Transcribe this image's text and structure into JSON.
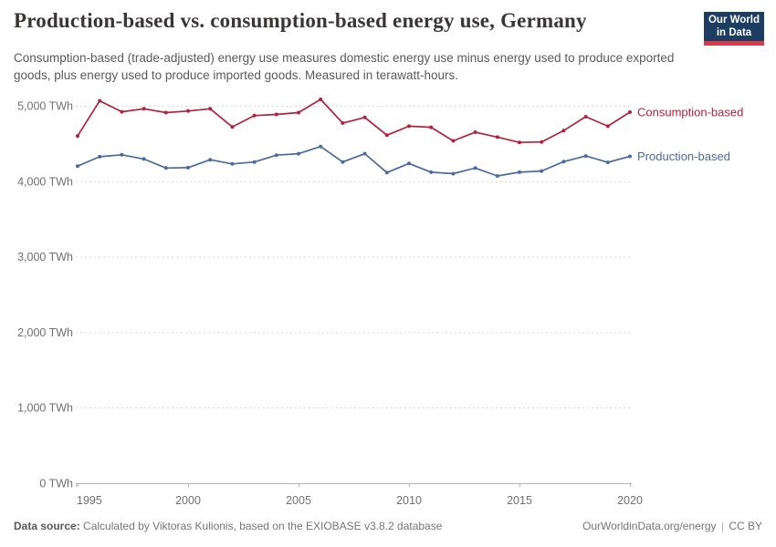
{
  "header": {
    "title": "Production-based vs. consumption-based energy use, Germany",
    "subtitle": "Consumption-based (trade-adjusted) energy use measures domestic energy use minus energy used to produce exported goods, plus energy used to produce imported goods. Measured in terawatt-hours."
  },
  "logo": {
    "line1": "Our World",
    "line2": "in Data",
    "bg_color": "#1d3d63",
    "stripe_color": "#d73b47"
  },
  "chart_data": {
    "type": "line",
    "title": "Production-based vs. consumption-based energy use, Germany",
    "unit": "TWh",
    "x": [
      1995,
      1996,
      1997,
      1998,
      1999,
      2000,
      2001,
      2002,
      2003,
      2004,
      2005,
      2006,
      2007,
      2008,
      2009,
      2010,
      2011,
      2012,
      2013,
      2014,
      2015,
      2016,
      2017,
      2018,
      2019,
      2020
    ],
    "series": [
      {
        "name": "Consumption-based",
        "color": "#b0233d",
        "values": [
          4600,
          5065,
          4920,
          4960,
          4910,
          4930,
          4960,
          4720,
          4870,
          4885,
          4910,
          5085,
          4770,
          4845,
          4610,
          4730,
          4715,
          4535,
          4650,
          4585,
          4515,
          4520,
          4670,
          4855,
          4730,
          4915
        ]
      },
      {
        "name": "Production-based",
        "color": "#4c6a9c",
        "values": [
          4200,
          4325,
          4350,
          4295,
          4175,
          4180,
          4285,
          4230,
          4255,
          4345,
          4365,
          4460,
          4255,
          4365,
          4115,
          4235,
          4120,
          4100,
          4175,
          4070,
          4120,
          4135,
          4260,
          4335,
          4250,
          4330
        ]
      }
    ],
    "ylim": [
      0,
      5000
    ],
    "yticks": [
      {
        "value": 0,
        "label": "0 TWh"
      },
      {
        "value": 1000,
        "label": "1,000 TWh"
      },
      {
        "value": 2000,
        "label": "2,000 TWh"
      },
      {
        "value": 3000,
        "label": "3,000 TWh"
      },
      {
        "value": 4000,
        "label": "4,000 TWh"
      },
      {
        "value": 5000,
        "label": "5,000 TWh"
      }
    ],
    "xticks": [
      1995,
      2000,
      2005,
      2010,
      2015,
      2020
    ],
    "grid": "horizontal-dashed",
    "legend_position": "right-of-line-ends"
  },
  "colors": {
    "grid": "#d9d9d9",
    "axis": "#b5b5b5",
    "tick_text": "#707070"
  },
  "footer": {
    "source_label": "Data source:",
    "source_text": "Calculated by Viktoras Kulionis, based on the EXIOBASE v3.8.2 database",
    "url": "OurWorldinData.org/energy",
    "separator": "|",
    "license": "CC BY"
  }
}
